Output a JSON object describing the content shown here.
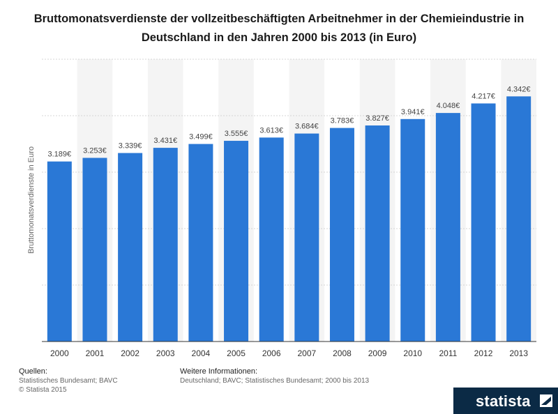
{
  "title": "Bruttomonatsverdienste der vollzeitbeschäftigten Arbeitnehmer in der Chemieindustrie in Deutschland in den Jahren 2000 bis 2013 (in Euro)",
  "sources": {
    "label": "Quellen:",
    "text": "Statistisches Bundesamt; BAVC",
    "copyright": "© Statista 2015"
  },
  "info": {
    "label": "Weitere Informationen:",
    "text": "Deutschland; BAVC; Statistisches Bundesamt; 2000 bis 2013"
  },
  "brand": {
    "name": "statista"
  },
  "colors": {
    "bar": "#2a78d6",
    "band": "#f4f4f4",
    "grid": "#d4d4d4",
    "label": "#444444"
  },
  "chart_data": {
    "type": "bar",
    "title": "Bruttomonatsverdienste der vollzeitbeschäftigten Arbeitnehmer in der Chemieindustrie in Deutschland in den Jahren 2000 bis 2013 (in Euro)",
    "xlabel": "",
    "ylabel": "Bruttomonatsverdienste in Euro",
    "categories": [
      "2000",
      "2001",
      "2002",
      "2003",
      "2004",
      "2005",
      "2006",
      "2007",
      "2008",
      "2009",
      "2010",
      "2011",
      "2012",
      "2013"
    ],
    "values": [
      3189,
      3253,
      3339,
      3431,
      3499,
      3555,
      3613,
      3684,
      3783,
      3827,
      3941,
      4048,
      4217,
      4342
    ],
    "value_labels": [
      "3.189€",
      "3.253€",
      "3.339€",
      "3.431€",
      "3.499€",
      "3.555€",
      "3.613€",
      "3.684€",
      "3.783€",
      "3.827€",
      "3.941€",
      "4.048€",
      "4.217€",
      "4.342€"
    ],
    "ylim": [
      0,
      5000
    ],
    "grid": true,
    "legend": "none"
  }
}
